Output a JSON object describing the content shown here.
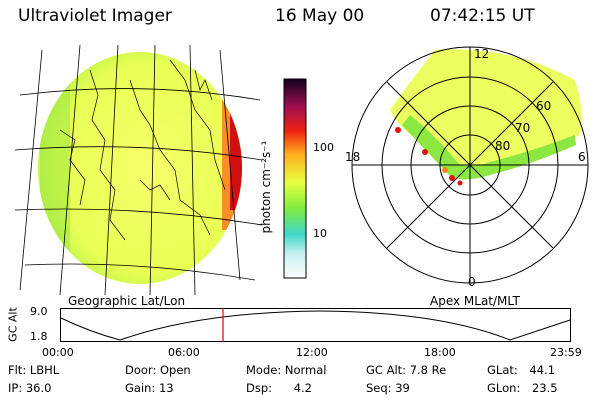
{
  "header": {
    "title": "Ultraviolet Imager",
    "date": "16 May 00",
    "time": "07:42:15 UT"
  },
  "colorbar": {
    "unit_label": "photon cm⁻²s⁻¹",
    "ticks": [
      "100",
      "10"
    ]
  },
  "polar": {
    "mlt_labels": [
      "12",
      "18",
      "6",
      "0"
    ],
    "lat_labels": [
      "60",
      "70",
      "80"
    ]
  },
  "panels": {
    "left_caption": "Geographic Lat/Lon",
    "right_caption": "Apex MLat/MLT"
  },
  "altitude": {
    "axis_label": "GC Alt",
    "max_label": "9.0",
    "min_label": "1.8",
    "time_ticks": [
      "00:00",
      "06:00",
      "12:00",
      "18:00",
      "23:59"
    ]
  },
  "status": {
    "flt_label": "Flt:",
    "flt_value": "LBHL",
    "ip_label": "IP:",
    "ip_value": "36.0",
    "door_label": "Door:",
    "door_value": "Open",
    "gain_label": "Gain:",
    "gain_value": "13",
    "mode_label": "Mode:",
    "mode_value": "Normal",
    "dsp_label": "Dsp:",
    "dsp_value": "4.2",
    "gcalt_label": "GC Alt:",
    "gcalt_value": "7.8 Re",
    "seq_label": "Seq:",
    "seq_value": "39",
    "glat_label": "GLat:",
    "glat_value": "44.1",
    "glon_label": "GLon:",
    "glon_value": "23.5"
  },
  "colors": {
    "background": "#ffffff",
    "emission_low": "#f0ff60",
    "emission_mid": "#9cf040",
    "emission_high": "#e01010",
    "marker": "#e00000"
  }
}
